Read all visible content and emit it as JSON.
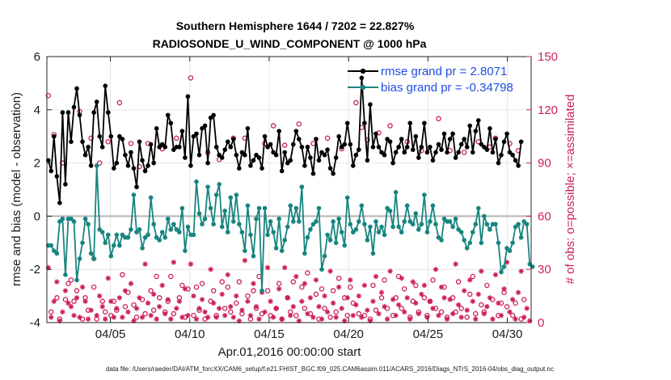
{
  "chart_data": {
    "type": "line",
    "title": "Southern Hemisphere 1644 / 7202 = 22.827%",
    "subtitle": "RADIOSONDE_U_WIND_COMPONENT @ 1000 hPa",
    "xlabel": "Apr.01,2016 00:00:00 start",
    "ylabel": "rmse and bias (model - observation)",
    "y2label": "# of obs: o=possible; ×=assimilated",
    "footer": "data file: /Users/raeder/DAI/ATM_forcXX/CAM6_setup/f.e21.FHIST_BGC.f09_025.CAM6assim.011/ACARS_2016/Diags_NTrS_2016-04/obs_diag_output.nc",
    "xlim": [
      0,
      30.5
    ],
    "ylim": [
      -4,
      6
    ],
    "y2lim": [
      0,
      150
    ],
    "x_ticks": [
      4,
      9,
      14,
      19,
      24,
      29
    ],
    "x_tick_labels": [
      "04/05",
      "04/10",
      "04/15",
      "04/20",
      "04/25",
      "04/30"
    ],
    "y_ticks": [
      -4,
      -2,
      0,
      2,
      4,
      6
    ],
    "y_tick_labels": [
      "-4",
      "-2",
      "0",
      "2",
      "4",
      "6"
    ],
    "y2_ticks": [
      0,
      30,
      60,
      90,
      120,
      150
    ],
    "y2_tick_labels": [
      "0",
      "30",
      "60",
      "90",
      "120",
      "150"
    ],
    "legend": [
      {
        "label": "rmse grand pr = 2.8071",
        "color": "#000000"
      },
      {
        "label": "bias grand pr = -0.34798",
        "color": "#17857f"
      }
    ],
    "series": [
      {
        "name": "rmse",
        "color": "#000000",
        "values": [
          2.1,
          1.7,
          3.0,
          1.5,
          0.5,
          3.9,
          1.2,
          3.9,
          2.8,
          4.1,
          4.8,
          3.8,
          2.8,
          2.3,
          2.6,
          1.9,
          3.9,
          4.3,
          3.0,
          2.6,
          4.9,
          3.9,
          3.0,
          1.8,
          2.0,
          3.0,
          2.9,
          2.3,
          1.9,
          2.4,
          1.8,
          1.1,
          2.8,
          2.1,
          1.7,
          1.9,
          2.7,
          2.0,
          3.3,
          2.6,
          2.7,
          2.6,
          3.8,
          3.5,
          2.5,
          2.6,
          2.6,
          3.2,
          2.2,
          4.5,
          1.9,
          3.0,
          3.1,
          2.3,
          3.3,
          3.4,
          2.0,
          3.7,
          3.8,
          2.6,
          2.3,
          2.2,
          2.5,
          2.8,
          2.6,
          2.9,
          2.3,
          1.8,
          2.4,
          2.3,
          3.3,
          1.9,
          2.1,
          2.3,
          2.2,
          1.8,
          3.0,
          2.6,
          2.7,
          2.4,
          2.3,
          3.2,
          1.7,
          2.4,
          2.0,
          2.1,
          2.7,
          3.2,
          2.9,
          2.6,
          1.9,
          2.6,
          2.2,
          1.6,
          2.9,
          2.1,
          2.4,
          2.3,
          2.5,
          1.8,
          1.6,
          2.2,
          3.0,
          2.6,
          2.7,
          3.5,
          2.7,
          1.9,
          2.3,
          2.5,
          5.2,
          3.5,
          2.1,
          4.2,
          2.6,
          3.1,
          2.6,
          2.4,
          2.3,
          2.9,
          2.8,
          2.0,
          2.4,
          2.6,
          2.9,
          2.4,
          2.6,
          3.5,
          2.5,
          3.0,
          2.2,
          2.6,
          3.5,
          2.4,
          2.6,
          2.1,
          2.4,
          2.7,
          2.5,
          3.1,
          2.4,
          2.9,
          3.1,
          2.2,
          2.4,
          2.7,
          2.9,
          2.6,
          3.4,
          2.4,
          3.2,
          3.6,
          2.7,
          2.6,
          2.5,
          3.3,
          2.4,
          2.9,
          2.0,
          2.3,
          2.8,
          3.1,
          2.4,
          2.3,
          2.1,
          1.9,
          2.8
        ]
      },
      {
        "name": "bias",
        "color": "#17857f",
        "values": [
          -1.1,
          -1.1,
          -1.3,
          -1.4,
          -0.2,
          -0.1,
          -2.2,
          -0.1,
          -0.1,
          -0.2,
          -2.4,
          -1.6,
          -1.0,
          -0.1,
          -0.3,
          -1.4,
          -1.6,
          1.9,
          -0.5,
          -0.6,
          -1.0,
          -0.7,
          -1.5,
          -1.1,
          -0.7,
          -1.1,
          -0.7,
          -0.8,
          -0.8,
          -0.5,
          0.8,
          -0.6,
          -0.5,
          -1.2,
          -0.8,
          -0.7,
          0.7,
          -0.3,
          -0.8,
          -0.9,
          -0.6,
          -0.8,
          -0.1,
          -0.5,
          -0.3,
          -0.5,
          -0.6,
          0.3,
          -1.3,
          -0.4,
          -0.7,
          -0.7,
          1.3,
          0.1,
          -0.3,
          -0.1,
          1.1,
          0.3,
          -0.3,
          0.8,
          1.2,
          -0.4,
          0.2,
          -0.6,
          0.7,
          -0.2,
          0.8,
          -0.3,
          -0.6,
          -1.3,
          0.4,
          -0.7,
          -1.5,
          -0.1,
          0.3,
          -2.8,
          0.3,
          -0.7,
          -0.2,
          -0.6,
          -1.2,
          -0.1,
          -1.3,
          -0.9,
          -0.4,
          0.4,
          -0.2,
          0.3,
          -0.2,
          1.1,
          -1.4,
          -0.8,
          -0.5,
          -0.3,
          -0.2,
          0.3,
          -2.0,
          -1.5,
          -0.7,
          -0.9,
          -0.2,
          -1.0,
          -0.1,
          -0.6,
          -1.1,
          0.7,
          -0.3,
          -0.6,
          -0.5,
          -0.2,
          0.4,
          -0.3,
          -0.9,
          -0.4,
          -1.4,
          -0.2,
          -0.6,
          -0.4,
          -0.7,
          0.3,
          0.2,
          -0.4,
          0.9,
          -0.4,
          -0.6,
          -0.2,
          0.4,
          -0.2,
          -0.3,
          0.1,
          -0.5,
          -0.3,
          0.8,
          -0.6,
          -0.2,
          0.4,
          -0.3,
          -0.8,
          -0.9,
          -0.1,
          -0.2,
          -0.2,
          -0.4,
          -0.1,
          -0.5,
          -0.6,
          -0.9,
          -1.2,
          -1.0,
          -0.6,
          -0.3,
          0.3,
          -1.0,
          0.0,
          -0.3,
          -0.5,
          -0.3,
          -0.3,
          -1.0,
          -2.1,
          -1.9,
          -1.2,
          -1.3,
          -1.0,
          -0.4,
          -0.3,
          -0.8,
          -0.2,
          -0.3,
          -1.8,
          -1.9
        ]
      },
      {
        "name": "possible",
        "color": "#cc1f5a",
        "values": [
          128,
          6,
          106,
          14,
          2,
          90,
          13,
          22,
          24,
          12,
          18,
          119,
          2,
          14,
          7,
          104,
          20,
          2,
          90,
          12,
          6,
          102,
          4,
          12,
          7,
          124,
          27,
          9,
          17,
          101,
          10,
          3,
          88,
          13,
          5,
          101,
          18,
          7,
          26,
          14,
          98,
          6,
          12,
          26,
          5,
          104,
          14,
          21,
          3,
          19,
          138,
          4,
          20,
          7,
          22,
          2,
          96,
          12,
          18,
          4,
          92,
          23,
          8,
          20,
          6,
          104,
          11,
          23,
          5,
          104,
          15,
          2,
          18,
          8,
          26,
          5,
          101,
          18,
          4,
          111,
          8,
          22,
          2,
          100,
          14,
          6,
          23,
          4,
          112,
          20,
          8,
          28,
          5,
          101,
          16,
          2,
          19,
          8,
          104,
          3,
          18,
          6,
          25,
          98,
          14,
          4,
          20,
          11,
          124,
          5,
          110,
          4,
          103,
          2,
          21,
          7,
          107,
          14,
          24,
          8,
          111,
          4,
          14,
          26,
          8,
          19,
          102,
          3,
          12,
          21,
          6,
          97,
          14,
          4,
          12,
          24,
          8,
          115,
          6,
          20,
          3,
          97,
          14,
          6,
          23,
          8,
          96,
          3,
          16,
          26,
          5,
          102,
          10,
          6,
          21,
          99,
          13,
          104,
          4,
          11,
          17,
          9,
          101,
          4,
          11,
          97,
          2,
          13
        ]
      },
      {
        "name": "assimilated",
        "color": "#cc1f5a",
        "values": [
          31,
          3,
          12,
          23,
          1,
          6,
          18,
          11,
          9,
          4,
          14,
          3,
          20,
          12,
          2,
          7,
          36,
          4,
          15,
          9,
          2,
          25,
          12,
          3,
          8,
          14,
          3,
          18,
          6,
          22,
          1,
          8,
          14,
          3,
          33,
          11,
          4,
          16,
          2,
          9,
          21,
          5,
          13,
          2,
          34,
          8,
          12,
          3,
          19,
          4,
          33,
          15,
          2,
          8,
          13,
          6,
          3,
          30,
          11,
          3,
          8,
          16,
          4,
          27,
          9,
          3,
          15,
          1,
          7,
          35,
          12,
          4,
          22,
          9,
          2,
          17,
          6,
          31,
          12,
          3,
          8,
          19,
          2,
          31,
          14,
          4,
          9,
          26,
          1,
          12,
          22,
          5,
          14,
          3,
          24,
          9,
          2,
          15,
          6,
          29,
          11,
          3,
          20,
          8,
          1,
          14,
          24,
          4,
          10,
          15,
          3,
          21,
          7,
          1,
          12,
          26,
          5,
          17,
          9,
          2,
          29,
          13,
          4,
          10,
          25,
          6,
          14,
          2,
          23,
          11,
          5,
          16,
          21,
          3,
          12,
          8,
          30,
          4,
          20,
          14,
          2,
          13,
          5,
          33,
          10,
          3,
          18,
          7,
          24,
          12,
          2,
          16,
          29,
          5,
          9,
          14,
          2,
          27,
          11,
          4,
          19,
          34,
          6,
          13,
          2,
          17,
          29,
          3,
          8,
          1
        ]
      }
    ]
  }
}
